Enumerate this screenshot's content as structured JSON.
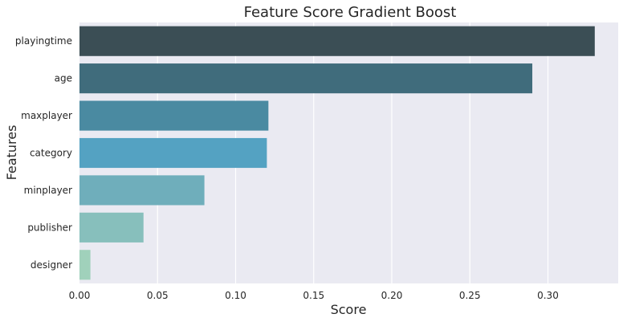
{
  "chart_data": {
    "type": "bar",
    "orientation": "horizontal",
    "title": "Feature Score Gradient Boost",
    "xlabel": "Score",
    "ylabel": "Features",
    "categories": [
      "playingtime",
      "age",
      "maxplayer",
      "category",
      "minplayer",
      "publisher",
      "designer"
    ],
    "values": [
      0.33,
      0.29,
      0.121,
      0.12,
      0.08,
      0.041,
      0.007
    ],
    "colors": [
      "#3b4e55",
      "#406c7c",
      "#4a8aa1",
      "#54a2c2",
      "#6faebb",
      "#87bfbc",
      "#a0d1bb"
    ],
    "xlim": [
      0,
      0.345
    ],
    "xticks": [
      0.0,
      0.05,
      0.1,
      0.15,
      0.2,
      0.25,
      0.3
    ],
    "xtick_labels": [
      "0.00",
      "0.05",
      "0.10",
      "0.15",
      "0.20",
      "0.25",
      "0.30"
    ],
    "grid": true,
    "background": "#eaeaf2"
  }
}
